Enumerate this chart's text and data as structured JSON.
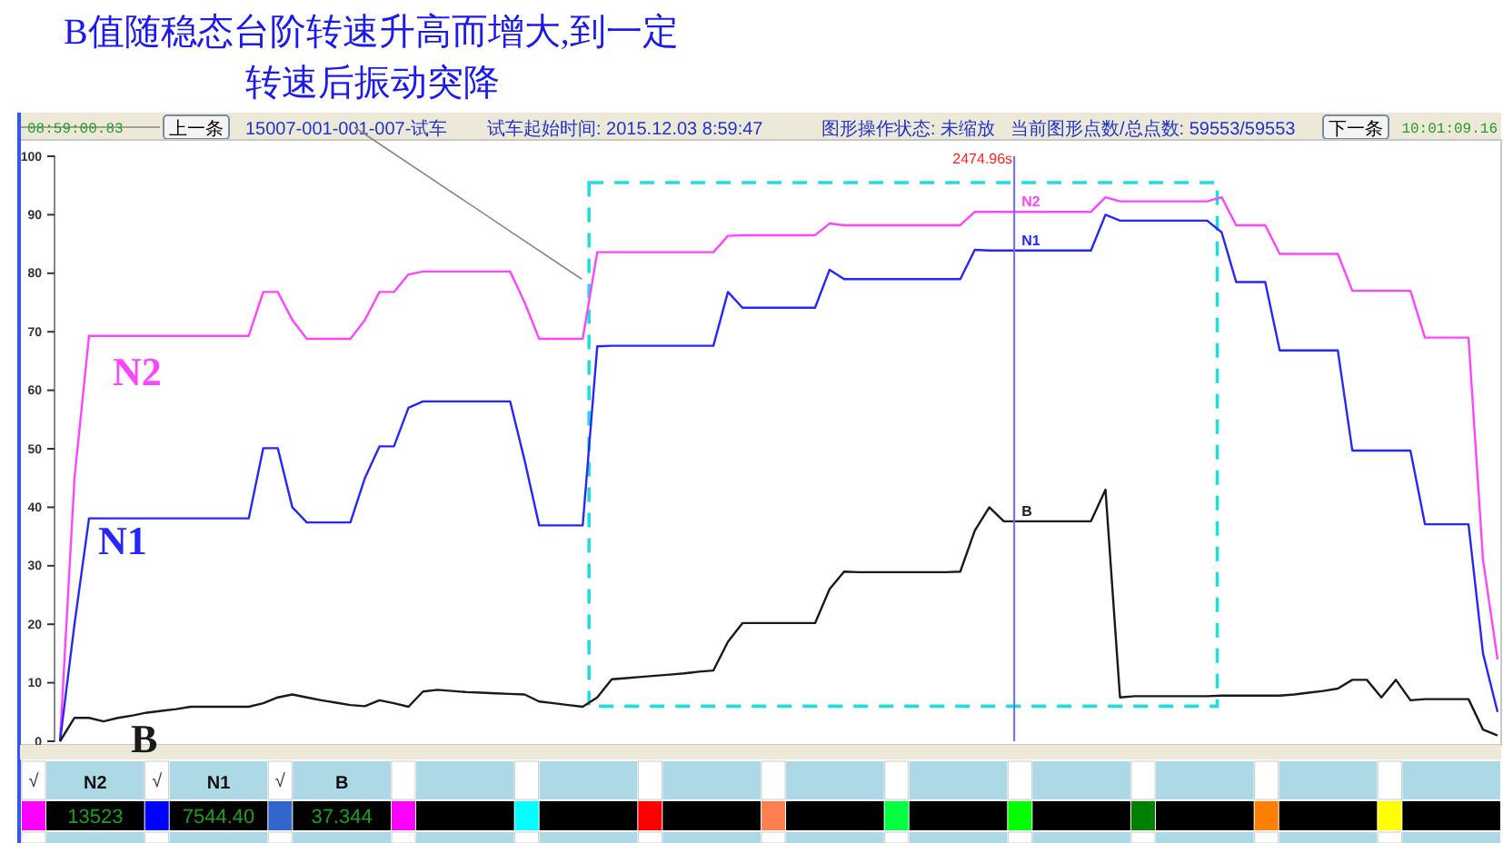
{
  "chart_data": {
    "type": "line",
    "title": "B值随稳态台阶转速升高而增大,到一定",
    "subtitle": "转速后振动突降",
    "categories": [
      null,
      null,
      null,
      null,
      null,
      null,
      null,
      null,
      null,
      null,
      null,
      null,
      null,
      null,
      null,
      null,
      null,
      null,
      null,
      null,
      null,
      null,
      null,
      null,
      null,
      null,
      null,
      null,
      null,
      null,
      null,
      null,
      null,
      null,
      null,
      null,
      null,
      null,
      null,
      null,
      null,
      null,
      null,
      null,
      null,
      null,
      null,
      null,
      null,
      null,
      null,
      null,
      null,
      null,
      null,
      null,
      null,
      null,
      null,
      null,
      null,
      null,
      null,
      null,
      null,
      null,
      null,
      null,
      null,
      null,
      null,
      null,
      null,
      null,
      null,
      null,
      null,
      null,
      null,
      null,
      null,
      null,
      null,
      null,
      null,
      null,
      null,
      null,
      null,
      null,
      null,
      null,
      null,
      null,
      null,
      null,
      null,
      null,
      null,
      null
    ],
    "ylim": [
      0,
      100
    ],
    "yticks": [
      0,
      10,
      20,
      30,
      40,
      50,
      60,
      70,
      80,
      90,
      100
    ],
    "tick_labels": "y",
    "grid": false,
    "series": [
      {
        "name": "N2",
        "color": "#ff44ff",
        "values": [
          0,
          45,
          69.3,
          69.3,
          69.3,
          69.3,
          69.3,
          69.3,
          69.3,
          69.3,
          69.3,
          69.3,
          69.3,
          69.3,
          76.8,
          76.8,
          72,
          68.8,
          68.8,
          68.8,
          68.8,
          72,
          76.8,
          76.8,
          79.8,
          80.3,
          80.3,
          80.3,
          80.3,
          80.3,
          80.3,
          80.3,
          75,
          68.8,
          68.8,
          68.8,
          68.8,
          83.6,
          83.6,
          83.6,
          83.6,
          83.6,
          83.6,
          83.6,
          83.6,
          83.6,
          86.4,
          86.5,
          86.5,
          86.5,
          86.5,
          86.5,
          86.5,
          88.5,
          88.2,
          88.2,
          88.2,
          88.2,
          88.2,
          88.2,
          88.2,
          88.2,
          88.2,
          90.5,
          90.5,
          90.5,
          90.5,
          90.5,
          90.5,
          90.5,
          90.5,
          90.5,
          93,
          92.3,
          92.3,
          92.3,
          92.3,
          92.3,
          92.3,
          92.3,
          93,
          88.2,
          88.2,
          88.2,
          83.3,
          83.3,
          83.3,
          83.3,
          83.3,
          77,
          77,
          77,
          77,
          77,
          69,
          69,
          69,
          69,
          31,
          14
        ]
      },
      {
        "name": "N1",
        "color": "#2626ff",
        "values": [
          0,
          20,
          38.1,
          38.1,
          38.1,
          38.1,
          38.1,
          38.1,
          38.1,
          38.1,
          38.1,
          38.1,
          38.1,
          38.1,
          50.1,
          50.1,
          40,
          37.4,
          37.4,
          37.4,
          37.4,
          45,
          50.4,
          50.4,
          57,
          58.1,
          58.1,
          58.1,
          58.1,
          58.1,
          58.1,
          58.1,
          48,
          36.9,
          36.9,
          36.9,
          36.9,
          67.5,
          67.6,
          67.6,
          67.6,
          67.6,
          67.6,
          67.6,
          67.6,
          67.6,
          76.8,
          74.1,
          74.1,
          74.1,
          74.1,
          74.1,
          74.1,
          80.6,
          79,
          79,
          79,
          79,
          79,
          79,
          79,
          79,
          79,
          84,
          83.9,
          83.9,
          83.9,
          83.9,
          83.9,
          83.9,
          83.9,
          83.9,
          90,
          89,
          89,
          89,
          89,
          89,
          89,
          89,
          87,
          78.5,
          78.5,
          78.5,
          66.8,
          66.8,
          66.8,
          66.8,
          66.8,
          49.7,
          49.7,
          49.7,
          49.7,
          49.7,
          37.1,
          37.1,
          37.1,
          37.1,
          15,
          5
        ]
      },
      {
        "name": "B",
        "color": "#1a1a1a",
        "values": [
          0,
          4,
          4,
          3.4,
          4,
          4.4,
          4.9,
          5.2,
          5.5,
          5.9,
          5.9,
          5.9,
          5.9,
          5.9,
          6.5,
          7.5,
          8,
          7.5,
          7,
          6.6,
          6.2,
          6,
          7,
          6.5,
          5.9,
          8.5,
          8.8,
          8.6,
          8.4,
          8.3,
          8.2,
          8.1,
          8,
          6.8,
          6.5,
          6.2,
          5.9,
          7.5,
          10.6,
          10.8,
          11,
          11.2,
          11.4,
          11.6,
          11.9,
          12.1,
          17,
          20.2,
          20.2,
          20.2,
          20.2,
          20.2,
          20.2,
          26,
          29,
          28.9,
          28.9,
          28.9,
          28.9,
          28.9,
          28.9,
          28.9,
          29,
          36,
          40,
          37.6,
          37.6,
          37.6,
          37.6,
          37.6,
          37.6,
          37.6,
          43,
          7.5,
          7.7,
          7.7,
          7.7,
          7.7,
          7.7,
          7.7,
          7.8,
          7.8,
          7.8,
          7.8,
          7.8,
          8,
          8.3,
          8.6,
          9,
          10.5,
          10.5,
          7.5,
          10.5,
          7,
          7.2,
          7.2,
          7.2,
          7.2,
          2,
          1
        ]
      }
    ],
    "annotations": [
      "08:59:00.83",
      "上一条",
      "15007-001-001-007-试车",
      "试车起始时间: 2015.12.03 8:59:47",
      "图形操作状态: 未缩放",
      "当前图形点数/总点数: 59553/59553",
      "下一条",
      "10:01:09.16",
      "2474.96s",
      "√",
      "√",
      "√",
      "13523",
      "7544.40",
      "37.344"
    ]
  }
}
